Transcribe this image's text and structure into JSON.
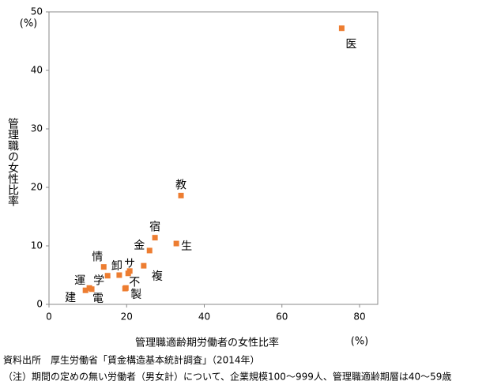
{
  "chart_data": {
    "type": "scatter",
    "y_label": "管理職の女性比率",
    "y_unit": "(%)",
    "x_label": "管理職適齢期労働者の女性比率",
    "x_unit": "(%)",
    "source": "資料出所　厚生労働省「賃金構造基本統計調査」（2014年）",
    "note": "（注）期間の定めの無い労働者（男女計）について、企業規模100～999人、管理職適齢期層は40～59歳",
    "color": "#ed7d31",
    "x": [
      75.4,
      34.0,
      27.3,
      32.8,
      25.9,
      24.4,
      14.1,
      20.8,
      20.4,
      18.1,
      15.1,
      19.8,
      19.6,
      10.4,
      9.4,
      11.0
    ],
    "values": [
      47.2,
      18.6,
      11.4,
      10.4,
      9.2,
      6.6,
      6.4,
      5.7,
      5.3,
      5.0,
      4.9,
      2.8,
      2.7,
      2.8,
      2.4,
      2.6
    ],
    "labels": [
      "医",
      "教",
      "宿",
      "生",
      "金",
      "複",
      "情",
      "サ",
      null,
      "卸",
      "学",
      "不",
      "製",
      "運",
      "建",
      "電"
    ],
    "xlim": [
      0,
      80
    ],
    "xticks": [
      0,
      20,
      40,
      60,
      80
    ],
    "ylim": [
      0,
      50
    ],
    "yticks": [
      0,
      10,
      20,
      30,
      40,
      50
    ]
  }
}
